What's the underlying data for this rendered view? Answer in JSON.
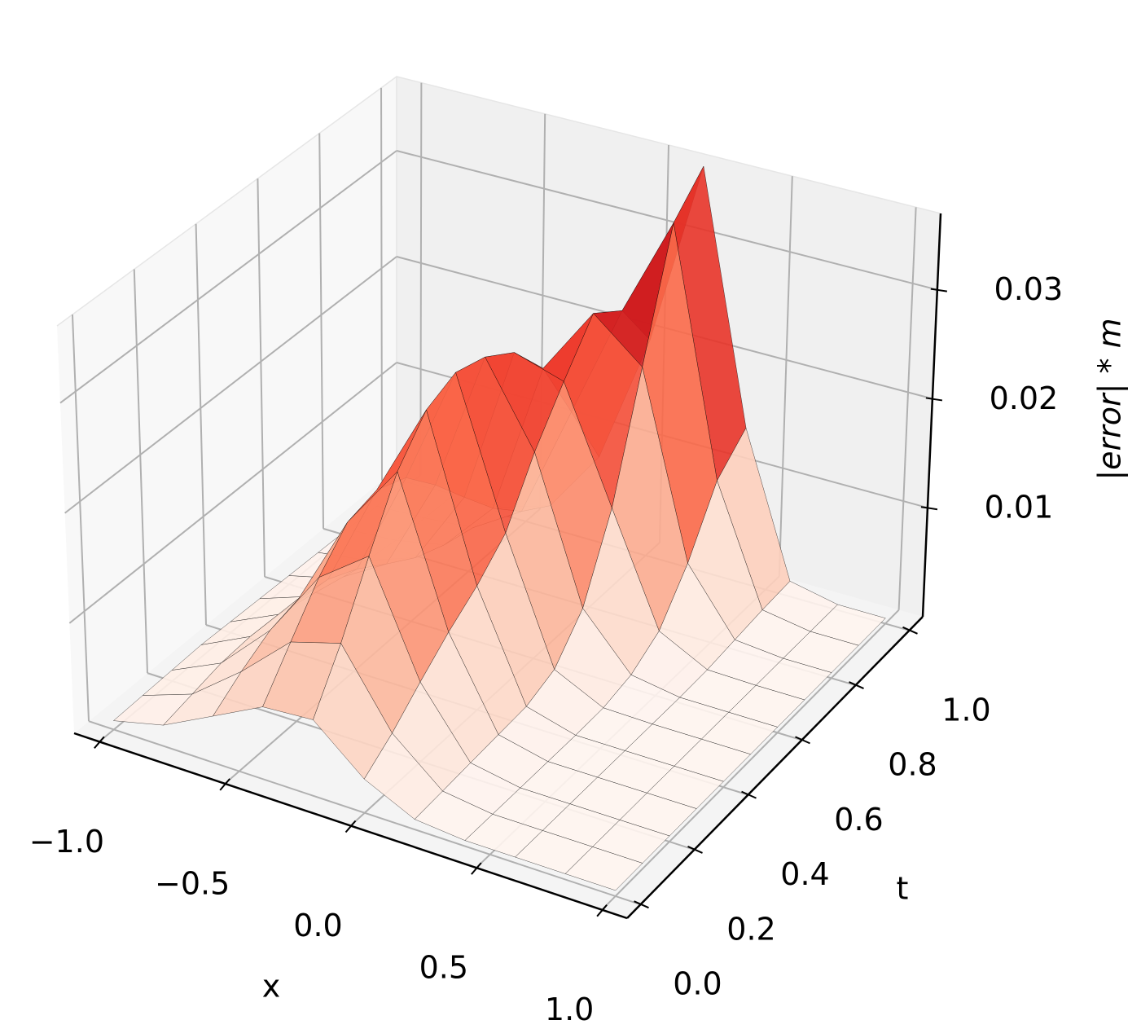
{
  "chart_data": {
    "type": "surface",
    "colormap": "Reds",
    "xlabel": "x",
    "ylabel": "t",
    "zlabel": "|error| * m",
    "x": [
      -1.0,
      -0.8,
      -0.6,
      -0.4,
      -0.2,
      0.0,
      0.2,
      0.4,
      0.6,
      0.8,
      1.0
    ],
    "t": [
      0.0,
      0.1,
      0.2,
      0.3,
      0.4,
      0.5,
      0.6,
      0.7,
      0.8,
      0.9,
      1.0
    ],
    "z": [
      [
        0.0008,
        0.0019,
        0.0042,
        0.0065,
        0.0068,
        0.003,
        0.0009,
        0.0005,
        0.0005,
        0.0005,
        0.0005
      ],
      [
        0.0009,
        0.0025,
        0.006,
        0.0101,
        0.0114,
        0.0048,
        0.0011,
        0.0005,
        0.0005,
        0.0005,
        0.0005
      ],
      [
        0.001,
        0.0031,
        0.0075,
        0.0137,
        0.017,
        0.0071,
        0.0013,
        0.0005,
        0.0005,
        0.0005,
        0.0005
      ],
      [
        0.0011,
        0.0033,
        0.0082,
        0.0165,
        0.0224,
        0.0093,
        0.0015,
        0.0005,
        0.0005,
        0.0005,
        0.0005
      ],
      [
        0.001,
        0.0031,
        0.0077,
        0.0172,
        0.0258,
        0.0112,
        0.0017,
        0.0005,
        0.0005,
        0.0005,
        0.0005
      ],
      [
        0.0009,
        0.0025,
        0.0064,
        0.0161,
        0.027,
        0.0137,
        0.0027,
        0.0006,
        0.0005,
        0.0005,
        0.0005
      ],
      [
        0.0008,
        0.0019,
        0.0046,
        0.0132,
        0.0262,
        0.0188,
        0.0059,
        0.0012,
        0.0005,
        0.0005,
        0.0005
      ],
      [
        0.0007,
        0.0013,
        0.0029,
        0.0098,
        0.0244,
        0.023,
        0.0127,
        0.0028,
        0.0006,
        0.0005,
        0.0005
      ],
      [
        0.0006,
        0.0009,
        0.0018,
        0.0065,
        0.0207,
        0.027,
        0.0233,
        0.0066,
        0.0009,
        0.0005,
        0.0005
      ],
      [
        0.0005,
        0.0007,
        0.0011,
        0.0039,
        0.0144,
        0.025,
        0.0343,
        0.0118,
        0.0012,
        0.0005,
        0.0005
      ],
      [
        0.0005,
        0.0006,
        0.0007,
        0.0021,
        0.0079,
        0.02,
        0.0373,
        0.0143,
        0.0014,
        0.0005,
        0.0005
      ]
    ],
    "xlim": [
      -1.1,
      1.1
    ],
    "ylim": [
      -0.05,
      1.05
    ],
    "zlim": [
      0,
      0.037
    ],
    "xticks": [
      {
        "value": -1,
        "label": "−1.0"
      },
      {
        "value": -0.5,
        "label": "−0.5"
      },
      {
        "value": 0,
        "label": "0.0"
      },
      {
        "value": 0.5,
        "label": "0.5"
      },
      {
        "value": 1,
        "label": "1.0"
      }
    ],
    "yticks": [
      {
        "value": 0,
        "label": "0.0"
      },
      0.2,
      0.4,
      0.6,
      0.8,
      {
        "value": 1,
        "label": "1.0"
      }
    ],
    "zticks": [
      0.01,
      0.02,
      0.03
    ],
    "grid": true
  }
}
